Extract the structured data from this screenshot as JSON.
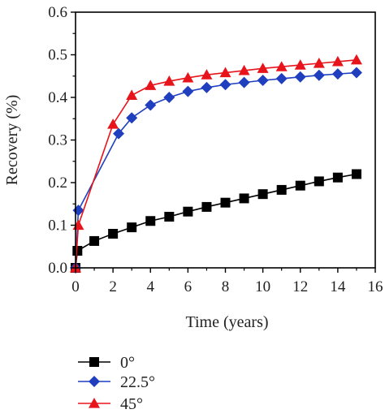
{
  "chart_data": {
    "type": "line",
    "title": "",
    "xlabel": "Time (years)",
    "ylabel": "Recovery (%)",
    "xlim": [
      0,
      16
    ],
    "ylim": [
      0,
      0.6
    ],
    "xticks": [
      "0",
      "2",
      "4",
      "6",
      "8",
      "10",
      "12",
      "14",
      "16"
    ],
    "yticks": [
      "0.0",
      "0.1",
      "0.2",
      "0.3",
      "0.4",
      "0.5",
      "0.6"
    ],
    "grid": false,
    "legend_position": "bottom-left",
    "series": [
      {
        "name": "0°",
        "color": "#000000",
        "marker": "square",
        "x": [
          0,
          0.1,
          1,
          2,
          3,
          4,
          5,
          6,
          7,
          8,
          9,
          10,
          11,
          12,
          13,
          14,
          15
        ],
        "y": [
          0.0,
          0.04,
          0.063,
          0.08,
          0.095,
          0.11,
          0.12,
          0.132,
          0.143,
          0.153,
          0.163,
          0.173,
          0.183,
          0.193,
          0.203,
          0.212,
          0.22
        ]
      },
      {
        "name": "22.5°",
        "color": "#1f3fbf",
        "marker": "diamond",
        "x": [
          0,
          0.15,
          2.3,
          3,
          4,
          5,
          6,
          7,
          8,
          9,
          10,
          11,
          12,
          13,
          14,
          15
        ],
        "y": [
          0.0,
          0.135,
          0.315,
          0.352,
          0.382,
          0.4,
          0.414,
          0.423,
          0.43,
          0.435,
          0.44,
          0.444,
          0.448,
          0.452,
          0.455,
          0.458
        ]
      },
      {
        "name": "45°",
        "color": "#e8141b",
        "marker": "triangle",
        "x": [
          0,
          0.15,
          2,
          3,
          4,
          5,
          6,
          7,
          8,
          9,
          10,
          11,
          12,
          13,
          14,
          15
        ],
        "y": [
          0.0,
          0.1,
          0.337,
          0.405,
          0.428,
          0.438,
          0.446,
          0.453,
          0.458,
          0.463,
          0.468,
          0.472,
          0.476,
          0.48,
          0.484,
          0.488
        ]
      }
    ]
  }
}
